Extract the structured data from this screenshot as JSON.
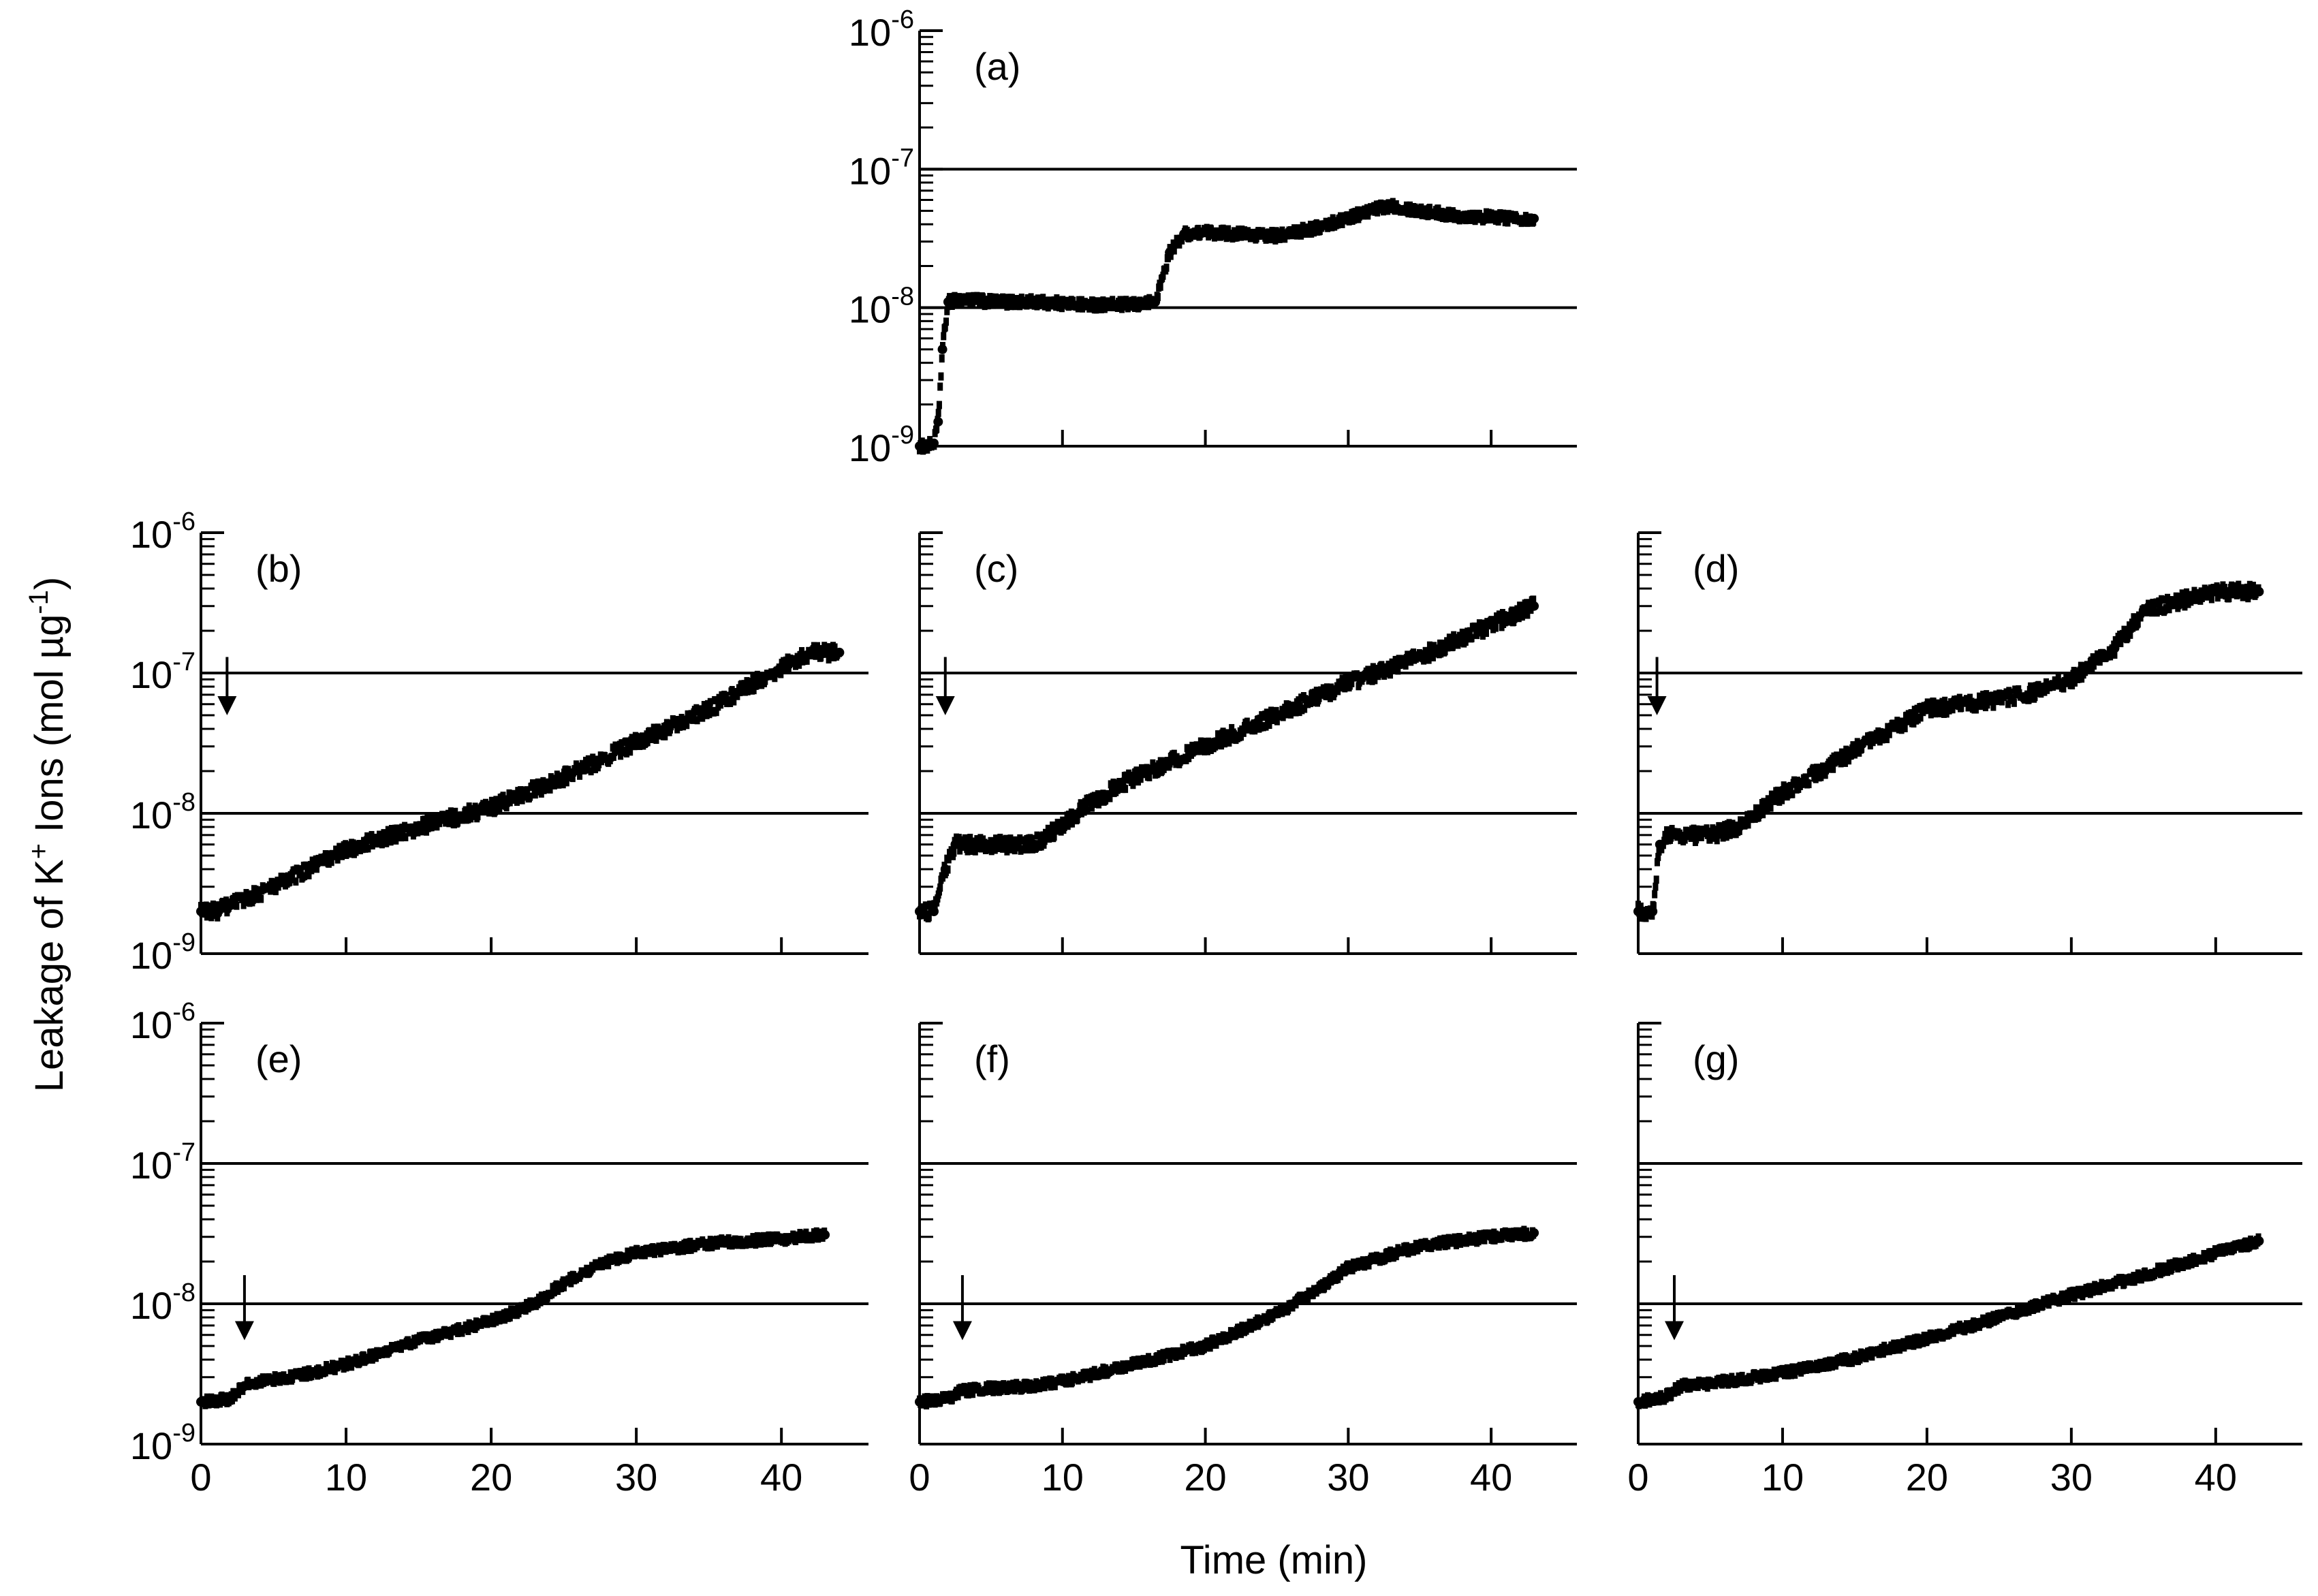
{
  "figure": {
    "xlabel": "Time (min)",
    "ylabel_parts": [
      "Leakage of K",
      "+",
      " Ions (mol µg",
      "-1",
      ")"
    ]
  },
  "y_ticks": [
    {
      "base": "10",
      "exp": "-6",
      "value": 1e-06
    },
    {
      "base": "10",
      "exp": "-7",
      "value": 1e-07
    },
    {
      "base": "10",
      "exp": "-8",
      "value": 1e-08
    },
    {
      "base": "10",
      "exp": "-9",
      "value": 1e-09
    }
  ],
  "x_ticks": [
    "0",
    "10",
    "20",
    "30",
    "40"
  ],
  "chart_data": [
    {
      "panel": "(a)",
      "type": "scatter",
      "title": "(a)",
      "xlim": [
        0,
        46
      ],
      "ylim": [
        1e-09,
        1e-06
      ],
      "yscale": "log",
      "gridlines_y": [
        1e-07,
        1e-08
      ],
      "arrow_x": null,
      "show_y_ticklabels": true,
      "show_x_ticklabels": false,
      "x": [
        0,
        0.5,
        1,
        1.3,
        1.6,
        2,
        3,
        5,
        8,
        12,
        15,
        16.5,
        17.5,
        18.5,
        20,
        25,
        28,
        30,
        33,
        35,
        38,
        40,
        43
      ],
      "y": [
        1e-09,
        1e-09,
        1.05e-09,
        1.5e-09,
        5e-09,
        1.1e-08,
        1.15e-08,
        1.1e-08,
        1.1e-08,
        1.05e-08,
        1.05e-08,
        1.1e-08,
        2.5e-08,
        3.4e-08,
        3.5e-08,
        3.3e-08,
        3.8e-08,
        4.5e-08,
        5.5e-08,
        5e-08,
        4.6e-08,
        4.5e-08,
        4.4e-08
      ]
    },
    {
      "panel": "(b)",
      "type": "scatter",
      "title": "(b)",
      "xlim": [
        0,
        46
      ],
      "ylim": [
        1e-09,
        1e-06
      ],
      "yscale": "log",
      "gridlines_y": [
        1e-07,
        1e-08
      ],
      "arrow_x": 1.8,
      "show_y_ticklabels": true,
      "show_x_ticklabels": false,
      "x": [
        0,
        1,
        2,
        5,
        10,
        15,
        20,
        25,
        30,
        35,
        40,
        42,
        44
      ],
      "y": [
        2e-09,
        2e-09,
        2.2e-09,
        3e-09,
        5.5e-09,
        8e-09,
        1.1e-08,
        1.8e-08,
        3.2e-08,
        5.5e-08,
        1.1e-07,
        1.4e-07,
        1.4e-07
      ]
    },
    {
      "panel": "(c)",
      "type": "scatter",
      "title": "(c)",
      "xlim": [
        0,
        46
      ],
      "ylim": [
        1e-09,
        1e-06
      ],
      "yscale": "log",
      "gridlines_y": [
        1e-07,
        1e-08
      ],
      "arrow_x": 1.8,
      "show_y_ticklabels": false,
      "show_x_ticklabels": false,
      "x": [
        0,
        1,
        1.8,
        2.5,
        5,
        8,
        9,
        12,
        15,
        20,
        25,
        30,
        35,
        40,
        43
      ],
      "y": [
        2e-09,
        2e-09,
        4e-09,
        6e-09,
        6e-09,
        6e-09,
        7e-09,
        1.2e-08,
        1.8e-08,
        3e-08,
        5e-08,
        8.5e-08,
        1.3e-07,
        2.2e-07,
        3e-07
      ]
    },
    {
      "panel": "(d)",
      "type": "scatter",
      "title": "(d)",
      "xlim": [
        0,
        46
      ],
      "ylim": [
        1e-09,
        1e-06
      ],
      "yscale": "log",
      "gridlines_y": [
        1e-07,
        1e-08
      ],
      "arrow_x": 1.3,
      "show_y_ticklabels": false,
      "show_x_ticklabels": false,
      "x": [
        0,
        1,
        1.5,
        2,
        5,
        7,
        10,
        15,
        20,
        25,
        28,
        30,
        33,
        35,
        40,
        43
      ],
      "y": [
        2e-09,
        2e-09,
        6e-09,
        7e-09,
        7e-09,
        8e-09,
        1.4e-08,
        2.8e-08,
        5.5e-08,
        6.5e-08,
        7.5e-08,
        9e-08,
        1.5e-07,
        2.8e-07,
        3.8e-07,
        3.8e-07
      ]
    },
    {
      "panel": "(e)",
      "type": "scatter",
      "title": "(e)",
      "xlim": [
        0,
        46
      ],
      "ylim": [
        1e-09,
        1e-06
      ],
      "yscale": "log",
      "gridlines_y": [
        1e-07,
        1e-08
      ],
      "arrow_x": 3,
      "show_y_ticklabels": true,
      "show_x_ticklabels": true,
      "x": [
        0,
        2,
        3,
        4,
        7,
        10,
        15,
        20,
        23,
        25,
        28,
        30,
        35,
        40,
        43
      ],
      "y": [
        2e-09,
        2.1e-09,
        2.6e-09,
        2.8e-09,
        3.1e-09,
        3.7e-09,
        5.5e-09,
        7.5e-09,
        1e-08,
        1.4e-08,
        2e-08,
        2.3e-08,
        2.7e-08,
        2.9e-08,
        3.1e-08
      ]
    },
    {
      "panel": "(f)",
      "type": "scatter",
      "title": "(f)",
      "xlim": [
        0,
        46
      ],
      "ylim": [
        1e-09,
        1e-06
      ],
      "yscale": "log",
      "gridlines_y": [
        1e-07,
        1e-08
      ],
      "arrow_x": 3,
      "show_y_ticklabels": false,
      "show_x_ticklabels": true,
      "x": [
        0,
        2,
        3,
        5,
        8,
        10,
        15,
        20,
        25,
        28,
        30,
        35,
        40,
        43
      ],
      "y": [
        2e-09,
        2.1e-09,
        2.4e-09,
        2.5e-09,
        2.6e-09,
        2.8e-09,
        3.7e-09,
        5e-09,
        8.5e-09,
        1.3e-08,
        1.8e-08,
        2.6e-08,
        3e-08,
        3.2e-08
      ]
    },
    {
      "panel": "(g)",
      "type": "scatter",
      "title": "(g)",
      "xlim": [
        0,
        46
      ],
      "ylim": [
        1e-09,
        1e-06
      ],
      "yscale": "log",
      "gridlines_y": [
        1e-07,
        1e-08
      ],
      "arrow_x": 2.5,
      "show_y_ticklabels": false,
      "show_x_ticklabels": true,
      "x": [
        0,
        2,
        3,
        5,
        10,
        15,
        20,
        25,
        30,
        35,
        40,
        43
      ],
      "y": [
        2e-09,
        2.2e-09,
        2.6e-09,
        2.7e-09,
        3.2e-09,
        4.1e-09,
        5.7e-09,
        8e-09,
        1.15e-08,
        1.6e-08,
        2.3e-08,
        2.8e-08
      ]
    }
  ]
}
